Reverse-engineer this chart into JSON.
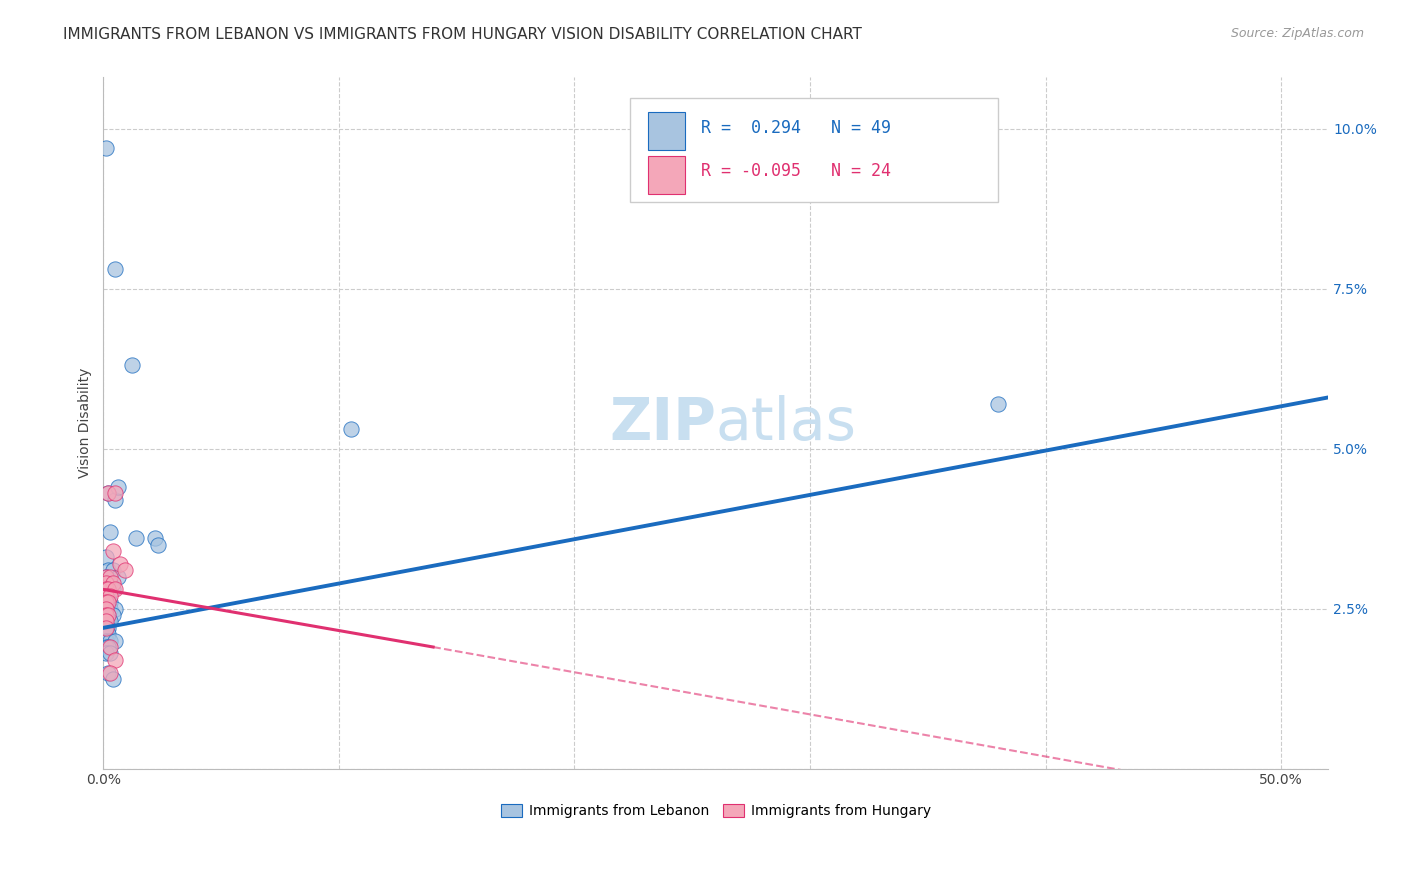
{
  "title": "IMMIGRANTS FROM LEBANON VS IMMIGRANTS FROM HUNGARY VISION DISABILITY CORRELATION CHART",
  "source": "Source: ZipAtlas.com",
  "ylabel": "Vision Disability",
  "watermark_zip": "ZIP",
  "watermark_atlas": "atlas",
  "xlim": [
    0.0,
    0.52
  ],
  "ylim": [
    0.0,
    0.108
  ],
  "xticks": [
    0.0,
    0.1,
    0.2,
    0.3,
    0.4,
    0.5
  ],
  "yticks": [
    0.0,
    0.025,
    0.05,
    0.075,
    0.1
  ],
  "ytick_labels": [
    "",
    "2.5%",
    "5.0%",
    "7.5%",
    "10.0%"
  ],
  "xtick_labels": [
    "0.0%",
    "",
    "",
    "",
    "",
    "50.0%"
  ],
  "color_lebanon": "#a8c4e0",
  "color_hungary": "#f4a7b9",
  "line_color_lebanon": "#1a6bbf",
  "line_color_hungary": "#e03070",
  "lebanon_points": [
    [
      0.001,
      0.097
    ],
    [
      0.005,
      0.078
    ],
    [
      0.012,
      0.063
    ],
    [
      0.002,
      0.043
    ],
    [
      0.005,
      0.042
    ],
    [
      0.006,
      0.044
    ],
    [
      0.003,
      0.037
    ],
    [
      0.001,
      0.033
    ],
    [
      0.002,
      0.031
    ],
    [
      0.004,
      0.031
    ],
    [
      0.006,
      0.03
    ],
    [
      0.001,
      0.03
    ],
    [
      0.001,
      0.029
    ],
    [
      0.003,
      0.029
    ],
    [
      0.001,
      0.028
    ],
    [
      0.002,
      0.028
    ],
    [
      0.004,
      0.028
    ],
    [
      0.001,
      0.027
    ],
    [
      0.002,
      0.027
    ],
    [
      0.001,
      0.026
    ],
    [
      0.002,
      0.026
    ],
    [
      0.003,
      0.026
    ],
    [
      0.001,
      0.025
    ],
    [
      0.002,
      0.025
    ],
    [
      0.003,
      0.025
    ],
    [
      0.005,
      0.025
    ],
    [
      0.001,
      0.024
    ],
    [
      0.002,
      0.024
    ],
    [
      0.004,
      0.024
    ],
    [
      0.001,
      0.023
    ],
    [
      0.002,
      0.023
    ],
    [
      0.003,
      0.023
    ],
    [
      0.001,
      0.022
    ],
    [
      0.002,
      0.022
    ],
    [
      0.001,
      0.021
    ],
    [
      0.002,
      0.021
    ],
    [
      0.001,
      0.02
    ],
    [
      0.003,
      0.02
    ],
    [
      0.005,
      0.02
    ],
    [
      0.001,
      0.019
    ],
    [
      0.002,
      0.019
    ],
    [
      0.001,
      0.018
    ],
    [
      0.003,
      0.018
    ],
    [
      0.014,
      0.036
    ],
    [
      0.022,
      0.036
    ],
    [
      0.023,
      0.035
    ],
    [
      0.105,
      0.053
    ],
    [
      0.38,
      0.057
    ],
    [
      0.002,
      0.015
    ],
    [
      0.004,
      0.014
    ]
  ],
  "hungary_points": [
    [
      0.002,
      0.043
    ],
    [
      0.005,
      0.043
    ],
    [
      0.004,
      0.034
    ],
    [
      0.007,
      0.032
    ],
    [
      0.009,
      0.031
    ],
    [
      0.001,
      0.03
    ],
    [
      0.003,
      0.03
    ],
    [
      0.001,
      0.029
    ],
    [
      0.004,
      0.029
    ],
    [
      0.001,
      0.028
    ],
    [
      0.002,
      0.028
    ],
    [
      0.005,
      0.028
    ],
    [
      0.001,
      0.027
    ],
    [
      0.003,
      0.027
    ],
    [
      0.001,
      0.026
    ],
    [
      0.002,
      0.026
    ],
    [
      0.001,
      0.025
    ],
    [
      0.001,
      0.024
    ],
    [
      0.002,
      0.024
    ],
    [
      0.001,
      0.023
    ],
    [
      0.001,
      0.022
    ],
    [
      0.003,
      0.019
    ],
    [
      0.005,
      0.017
    ],
    [
      0.003,
      0.015
    ]
  ],
  "lebanon_line": [
    [
      0.0,
      0.022
    ],
    [
      0.52,
      0.058
    ]
  ],
  "hungary_line_solid": [
    [
      0.0,
      0.028
    ],
    [
      0.14,
      0.019
    ]
  ],
  "hungary_line_dashed": [
    [
      0.14,
      0.019
    ],
    [
      0.52,
      -0.006
    ]
  ],
  "background_color": "#ffffff",
  "grid_color": "#cccccc",
  "title_fontsize": 11,
  "axis_label_fontsize": 10,
  "tick_fontsize": 10,
  "legend_fontsize": 12,
  "watermark_fontsize_zip": 42,
  "watermark_fontsize_atlas": 42,
  "watermark_color": "#c8dff0",
  "marker_size": 11
}
